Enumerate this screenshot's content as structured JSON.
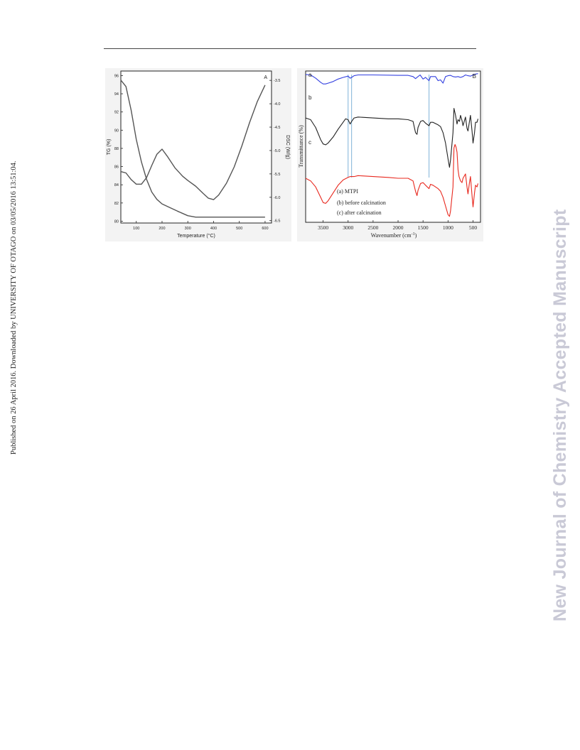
{
  "page": {
    "side_note": "Published on 26 April 2016. Downloaded by UNIVERSITY OF OTAGO on 03/05/2016 13:51:04.",
    "watermark": "New Journal of Chemistry Accepted Manuscript"
  },
  "chart_data": [
    {
      "type": "line",
      "panel_label": "A",
      "xlabel": "Temperature (°C)",
      "ylabel": "TG (%)",
      "y2label": "DSC (W/g)",
      "xlim": [
        40,
        625
      ],
      "ylim": [
        79.8,
        96.5
      ],
      "y2lim": [
        -6.55,
        -3.3
      ],
      "xticks": [
        100,
        200,
        300,
        400,
        500,
        600
      ],
      "yticks": [
        80,
        82,
        84,
        86,
        88,
        90,
        92,
        94,
        96
      ],
      "y2ticks": [
        -3.5,
        -4.0,
        -4.5,
        -5.0,
        -5.5,
        -6.0,
        -6.5
      ],
      "y2tick_labels": [
        "-3.5",
        "-4.0",
        "-4.5",
        "-5.0",
        "-5.5",
        "-6.0",
        "-6.5"
      ],
      "series": [
        {
          "axis": "left",
          "color": "#555555",
          "x": [
            40,
            60,
            80,
            100,
            120,
            140,
            160,
            180,
            200,
            230,
            260,
            300,
            330,
            360,
            400,
            450,
            500,
            550,
            600
          ],
          "y": [
            95.5,
            94.8,
            92.2,
            89.0,
            86.5,
            84.6,
            83.2,
            82.4,
            81.9,
            81.5,
            81.1,
            80.6,
            80.45,
            80.45,
            80.45,
            80.45,
            80.45,
            80.45,
            80.45
          ]
        },
        {
          "axis": "right",
          "color": "#555555",
          "x": [
            40,
            60,
            80,
            100,
            120,
            140,
            160,
            180,
            200,
            220,
            250,
            280,
            300,
            330,
            360,
            380,
            400,
            420,
            450,
            480,
            510,
            540,
            570,
            600
          ],
          "y": [
            -5.45,
            -5.48,
            -5.62,
            -5.72,
            -5.72,
            -5.58,
            -5.32,
            -5.08,
            -4.97,
            -5.12,
            -5.37,
            -5.55,
            -5.64,
            -5.76,
            -5.92,
            -6.02,
            -6.05,
            -5.95,
            -5.7,
            -5.35,
            -4.9,
            -4.4,
            -3.95,
            -3.6
          ]
        }
      ]
    },
    {
      "type": "line",
      "panel_label": "B",
      "xlabel": "Wavenumber (cm",
      "xlabel_sup": "-1",
      "xlabel_tail": ")",
      "ylabel": "Transmittance (%)",
      "xlim": [
        3850,
        350
      ],
      "xticks": [
        3500,
        3000,
        2500,
        2000,
        1500,
        1000,
        500
      ],
      "legend": [
        "(a)  MTPI",
        "(b) before calcination",
        "(c) after calcination"
      ],
      "legend_position": "bottom-left",
      "vlines": [
        3000,
        2930,
        1380
      ],
      "series": [
        {
          "label": "a",
          "color": "#3340e0",
          "x": [
            3850,
            3750,
            3650,
            3550,
            3500,
            3450,
            3400,
            3300,
            3200,
            3100,
            3000,
            2960,
            2930,
            2880,
            2800,
            2500,
            2000,
            1800,
            1700,
            1650,
            1600,
            1560,
            1500,
            1450,
            1380,
            1350,
            1250,
            1200,
            1150,
            1100,
            1050,
            1000,
            950,
            900,
            850,
            800,
            750,
            700,
            650,
            600,
            550,
            500,
            450,
            400
          ],
          "y": [
            95,
            94,
            86,
            76,
            72,
            72,
            74,
            78,
            84,
            88,
            91,
            86,
            88,
            92,
            94,
            94,
            93,
            93,
            90,
            85,
            90,
            94,
            84,
            88,
            80,
            90,
            90,
            80,
            82,
            74,
            90,
            92,
            93,
            90,
            89,
            90,
            88,
            90,
            94,
            92,
            91,
            94,
            96,
            97
          ]
        },
        {
          "label": "b",
          "color": "#222222",
          "x": [
            3850,
            3750,
            3650,
            3550,
            3500,
            3450,
            3400,
            3300,
            3200,
            3100,
            3050,
            3000,
            2960,
            2930,
            2880,
            2800,
            2500,
            2200,
            2000,
            1800,
            1700,
            1650,
            1620,
            1600,
            1550,
            1500,
            1450,
            1380,
            1350,
            1300,
            1200,
            1150,
            1100,
            1050,
            1000,
            970,
            950,
            900,
            880,
            850,
            820,
            800,
            770,
            750,
            720,
            700,
            650,
            620,
            600,
            570,
            550,
            520,
            500,
            470,
            450,
            420,
            400
          ],
          "y": [
            77,
            75,
            66,
            52,
            47,
            46,
            48,
            55,
            64,
            72,
            76,
            75,
            70,
            73,
            77,
            78,
            77,
            76,
            76,
            75,
            73,
            60,
            58,
            66,
            73,
            74,
            71,
            68,
            72,
            72,
            69,
            67,
            60,
            48,
            30,
            20,
            28,
            60,
            88,
            80,
            70,
            75,
            73,
            80,
            74,
            68,
            78,
            65,
            62,
            73,
            80,
            62,
            48,
            60,
            72,
            72,
            76
          ]
        },
        {
          "label": "c",
          "color": "#e8281e",
          "x": [
            3850,
            3750,
            3650,
            3550,
            3500,
            3450,
            3400,
            3300,
            3200,
            3100,
            3000,
            2960,
            2930,
            2880,
            2800,
            2500,
            2200,
            2000,
            1800,
            1700,
            1650,
            1620,
            1600,
            1550,
            1500,
            1450,
            1380,
            1350,
            1300,
            1200,
            1150,
            1100,
            1050,
            1000,
            970,
            950,
            900,
            880,
            860,
            840,
            820,
            800,
            780,
            750,
            720,
            700,
            650,
            620,
            600,
            570,
            550,
            520,
            500,
            470,
            450,
            420,
            400
          ],
          "y": [
            50,
            47,
            40,
            28,
            22,
            21,
            24,
            33,
            42,
            48,
            51,
            52,
            52,
            52,
            53,
            52,
            51,
            50,
            50,
            47,
            35,
            30,
            36,
            44,
            45,
            42,
            38,
            43,
            42,
            38,
            35,
            28,
            18,
            8,
            6,
            12,
            40,
            85,
            89,
            86,
            80,
            60,
            52,
            47,
            45,
            50,
            55,
            40,
            32,
            45,
            52,
            30,
            17,
            33,
            42,
            40,
            44
          ]
        }
      ]
    }
  ]
}
